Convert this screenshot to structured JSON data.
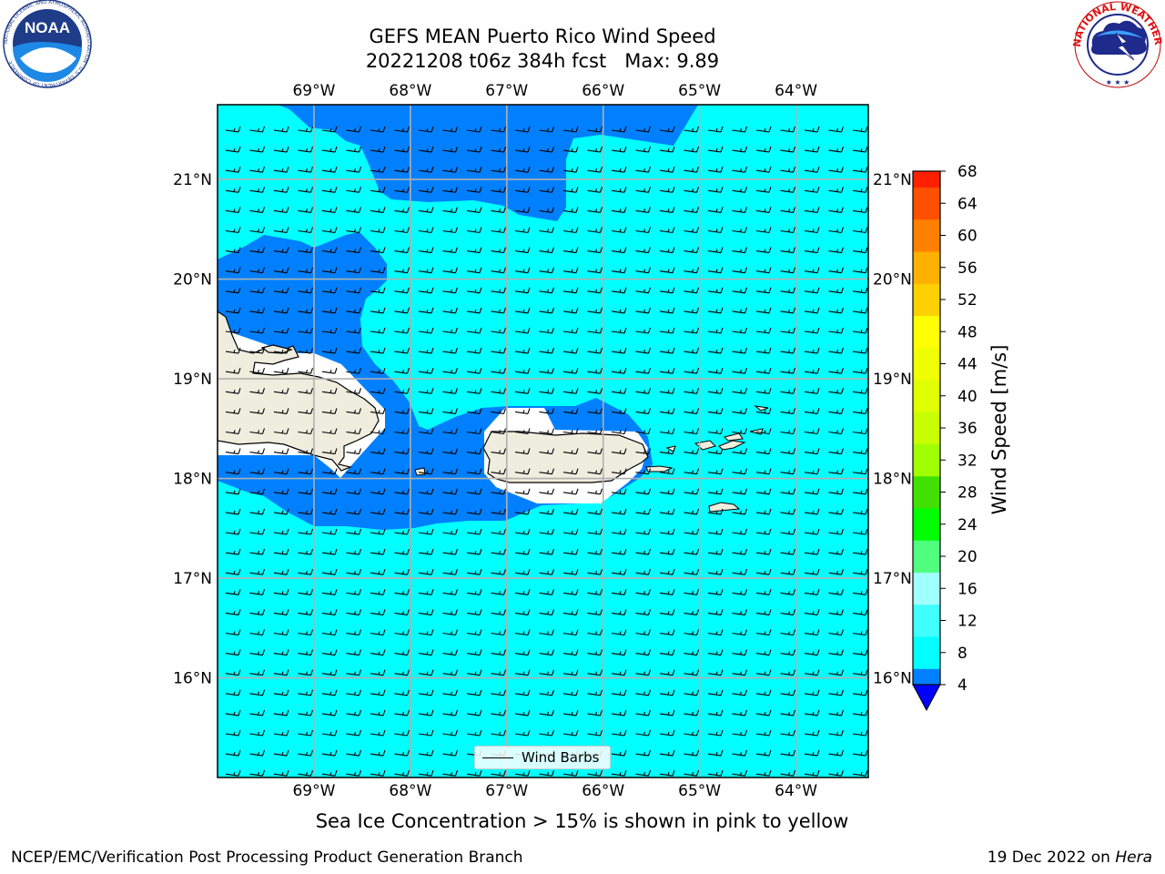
{
  "title": {
    "line1": "GEFS MEAN Puerto Rico Wind Speed",
    "line2": "20221208 t06z 384h fcst   Max: 9.89"
  },
  "logos": {
    "noaa": {
      "text": "NOAA",
      "ring": "NATIONAL OCEANIC AND ATMOSPHERIC ADMINISTRATION · U.S. DEPARTMENT OF COMMERCE"
    },
    "nws": {
      "ring": "NATIONAL WEATHER SERVICE"
    }
  },
  "map": {
    "lon_labels": [
      "69°W",
      "68°W",
      "67°W",
      "66°W",
      "65°W",
      "64°W"
    ],
    "lat_labels": [
      "21°N",
      "20°N",
      "19°N",
      "18°N",
      "17°N",
      "16°N"
    ],
    "lon_values": [
      -69,
      -68,
      -67,
      -66,
      -65,
      -64
    ],
    "lat_values": [
      21,
      20,
      19,
      18,
      17,
      16
    ],
    "lon_range": [
      -70.0,
      -63.25
    ],
    "lat_range": [
      15.0,
      21.75
    ],
    "gridlines": true,
    "barbs_label": "Wind Barbs"
  },
  "colors": {
    "ocean_light": "#00ffff",
    "ocean_dark": "#0080ff",
    "land": "#efedde",
    "gridline": "#b0b0b0"
  },
  "colorbar": {
    "label": "Wind Speed [m/s]",
    "tick_labels": [
      "4",
      "8",
      "12",
      "16",
      "20",
      "24",
      "28",
      "32",
      "36",
      "40",
      "44",
      "48",
      "52",
      "56",
      "60",
      "64",
      "68"
    ],
    "levels": [
      4,
      6,
      8,
      10,
      12,
      14,
      16,
      18,
      20,
      22,
      24,
      26,
      28,
      30,
      32,
      34,
      36,
      38,
      40,
      42,
      44,
      46,
      48,
      50,
      52,
      54,
      56,
      58,
      60,
      62,
      64,
      66,
      68
    ],
    "colors": [
      "#0080ff",
      "#00ffff",
      "#00ffff",
      "#40ffff",
      "#40ffff",
      "#a0ffff",
      "#a0ffff",
      "#50ff80",
      "#50ff80",
      "#00ff00",
      "#00ff00",
      "#40e000",
      "#40e000",
      "#a0ff00",
      "#a0ff00",
      "#c8ff00",
      "#c8ff00",
      "#e0ff00",
      "#e0ff00",
      "#f0ff00",
      "#f0ff00",
      "#ffff00",
      "#ffff00",
      "#ffd000",
      "#ffd000",
      "#ffb000",
      "#ffb000",
      "#ff8000",
      "#ff8000",
      "#ff5000",
      "#ff5000",
      "#ff2000",
      "#ff0000"
    ],
    "under_color": "#0000ff"
  },
  "caption": "Sea Ice Concentration > 15% is shown in pink to yellow",
  "footer": {
    "left": "NCEP/EMC/Verification Post Processing Product Generation Branch",
    "date": "19 Dec 2022 on ",
    "machine": "Hera"
  }
}
